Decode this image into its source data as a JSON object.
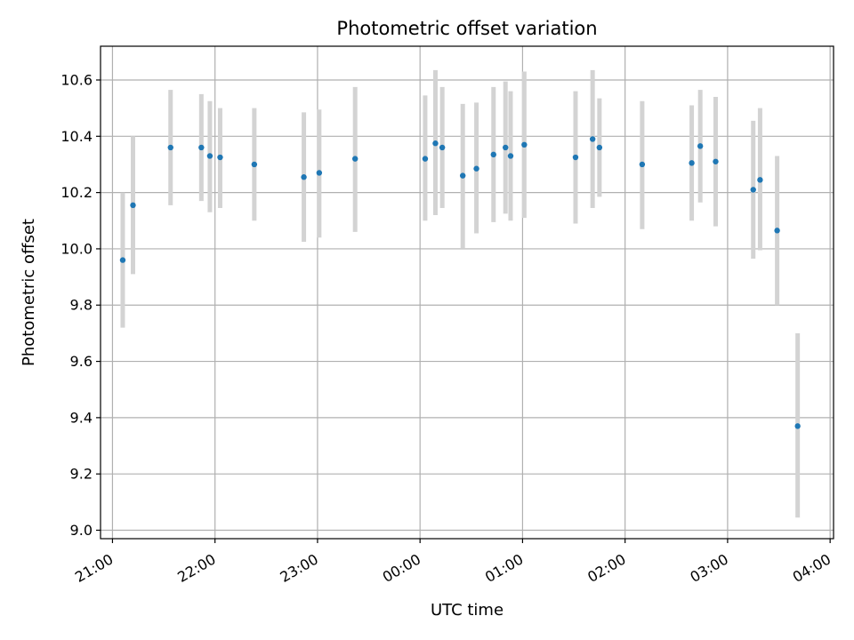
{
  "chart_data": {
    "type": "scatter",
    "title": "Photometric offset variation",
    "xlabel": "UTC time",
    "ylabel": "Photometric offset",
    "xlim": [
      "20:53",
      "04:02"
    ],
    "ylim": [
      8.97,
      10.72
    ],
    "grid": true,
    "x_ticks": [
      "21:00",
      "22:00",
      "23:00",
      "00:00",
      "01:00",
      "02:00",
      "03:00",
      "04:00"
    ],
    "y_ticks": [
      "9.0",
      "9.2",
      "9.4",
      "9.6",
      "9.8",
      "10.0",
      "10.2",
      "10.4",
      "10.6"
    ],
    "colors": {
      "point": "#1f77b4",
      "errorbar": "#d3d3d3",
      "grid": "#b0b0b0"
    },
    "series": [
      {
        "points": [
          {
            "time": "21:06",
            "y": 9.96,
            "yerr_low": 9.72,
            "yerr_high": 10.2
          },
          {
            "time": "21:12",
            "y": 10.155,
            "yerr_low": 9.91,
            "yerr_high": 10.4
          },
          {
            "time": "21:34",
            "y": 10.36,
            "yerr_low": 10.155,
            "yerr_high": 10.565
          },
          {
            "time": "21:52",
            "y": 10.36,
            "yerr_low": 10.17,
            "yerr_high": 10.55
          },
          {
            "time": "21:57",
            "y": 10.33,
            "yerr_low": 10.13,
            "yerr_high": 10.525
          },
          {
            "time": "22:03",
            "y": 10.325,
            "yerr_low": 10.145,
            "yerr_high": 10.5
          },
          {
            "time": "22:23",
            "y": 10.3,
            "yerr_low": 10.1,
            "yerr_high": 10.5
          },
          {
            "time": "22:52",
            "y": 10.255,
            "yerr_low": 10.025,
            "yerr_high": 10.485
          },
          {
            "time": "23:01",
            "y": 10.27,
            "yerr_low": 10.04,
            "yerr_high": 10.495
          },
          {
            "time": "23:22",
            "y": 10.32,
            "yerr_low": 10.06,
            "yerr_high": 10.575
          },
          {
            "time": "00:03",
            "y": 10.32,
            "yerr_low": 10.1,
            "yerr_high": 10.545
          },
          {
            "time": "00:09",
            "y": 10.375,
            "yerr_low": 10.12,
            "yerr_high": 10.635
          },
          {
            "time": "00:13",
            "y": 10.36,
            "yerr_low": 10.145,
            "yerr_high": 10.575
          },
          {
            "time": "00:25",
            "y": 10.26,
            "yerr_low": 10.0,
            "yerr_high": 10.515
          },
          {
            "time": "00:33",
            "y": 10.285,
            "yerr_low": 10.055,
            "yerr_high": 10.52
          },
          {
            "time": "00:43",
            "y": 10.335,
            "yerr_low": 10.095,
            "yerr_high": 10.575
          },
          {
            "time": "00:50",
            "y": 10.36,
            "yerr_low": 10.125,
            "yerr_high": 10.595
          },
          {
            "time": "00:53",
            "y": 10.33,
            "yerr_low": 10.1,
            "yerr_high": 10.56
          },
          {
            "time": "01:01",
            "y": 10.37,
            "yerr_low": 10.11,
            "yerr_high": 10.63
          },
          {
            "time": "01:31",
            "y": 10.325,
            "yerr_low": 10.09,
            "yerr_high": 10.56
          },
          {
            "time": "01:41",
            "y": 10.39,
            "yerr_low": 10.145,
            "yerr_high": 10.635
          },
          {
            "time": "01:45",
            "y": 10.36,
            "yerr_low": 10.185,
            "yerr_high": 10.535
          },
          {
            "time": "02:10",
            "y": 10.3,
            "yerr_low": 10.07,
            "yerr_high": 10.525
          },
          {
            "time": "02:39",
            "y": 10.305,
            "yerr_low": 10.1,
            "yerr_high": 10.51
          },
          {
            "time": "02:44",
            "y": 10.365,
            "yerr_low": 10.165,
            "yerr_high": 10.565
          },
          {
            "time": "02:53",
            "y": 10.31,
            "yerr_low": 10.08,
            "yerr_high": 10.54
          },
          {
            "time": "03:15",
            "y": 10.21,
            "yerr_low": 9.965,
            "yerr_high": 10.455
          },
          {
            "time": "03:19",
            "y": 10.245,
            "yerr_low": 9.995,
            "yerr_high": 10.5
          },
          {
            "time": "03:29",
            "y": 10.065,
            "yerr_low": 9.8,
            "yerr_high": 10.33
          },
          {
            "time": "03:41",
            "y": 9.37,
            "yerr_low": 9.045,
            "yerr_high": 9.7
          }
        ]
      }
    ]
  }
}
